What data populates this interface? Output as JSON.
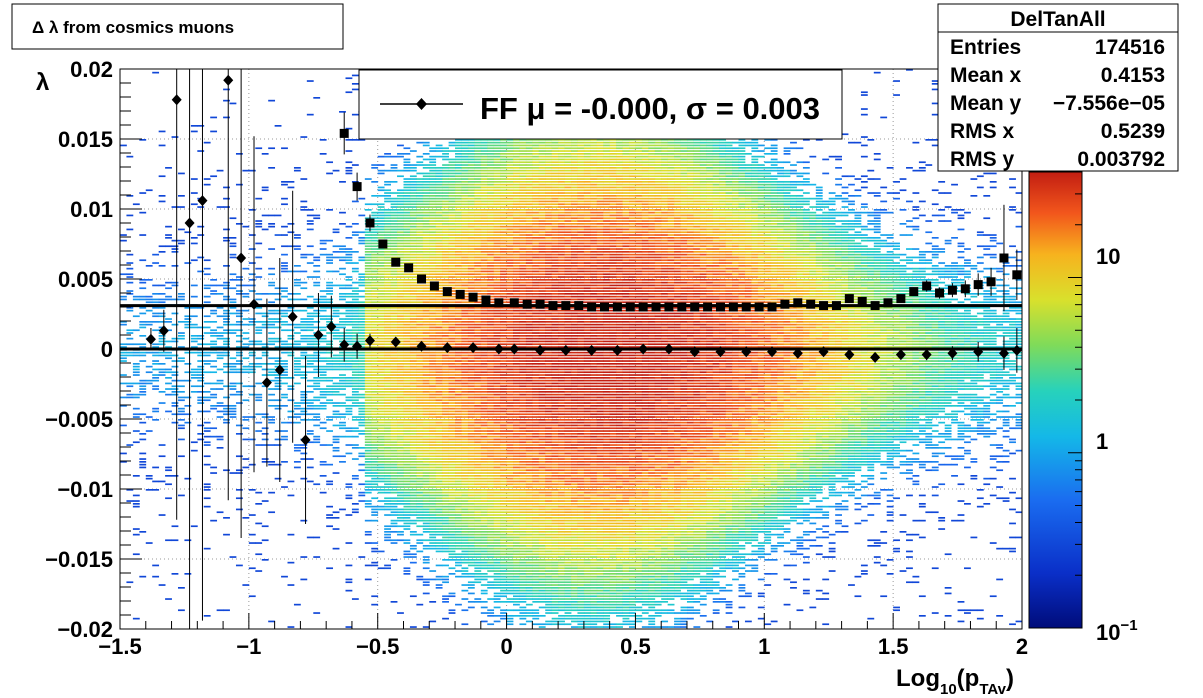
{
  "chart_data": {
    "type": "heatmap",
    "title": "Δ λ from cosmics muons",
    "xlabel": "Log10(pTAv)",
    "xlabel_parts": {
      "base": "Log",
      "sub1": "10",
      "mid": "(p",
      "sub2": "TAv",
      "end": ")"
    },
    "ylabel": "λ",
    "xlim": [
      -1.5,
      2
    ],
    "ylim": [
      -0.02,
      0.02
    ],
    "x_ticks": [
      -1.5,
      -1,
      -0.5,
      0,
      0.5,
      1,
      1.5,
      2
    ],
    "x_tick_labels": [
      "−1.5",
      "−1",
      "−0.5",
      "0",
      "0.5",
      "1",
      "1.5",
      "2"
    ],
    "y_ticks": [
      -0.02,
      -0.015,
      -0.01,
      -0.005,
      0,
      0.005,
      0.01,
      0.015,
      0.02
    ],
    "y_tick_labels": [
      "−0.02",
      "−0.015",
      "−0.01",
      "−0.005",
      "0",
      "0.005",
      "0.01",
      "0.015",
      "0.02"
    ],
    "grid": true,
    "colorbar": {
      "scale": "log",
      "range": [
        0.1,
        40
      ],
      "labels": [
        {
          "value": 0.1,
          "base": "10",
          "exp": "−1"
        },
        {
          "value": 1,
          "text": "1"
        },
        {
          "value": 10,
          "text": "10"
        }
      ]
    },
    "legend": {
      "placement": "top-center",
      "text": "FF μ = -0.000, σ =   0.003"
    },
    "fit_lines": {
      "mean": 0.0,
      "upper": 0.0031
    },
    "stats": {
      "name": "DelTanAll",
      "rows": [
        {
          "label": "Entries",
          "value": "174516"
        },
        {
          "label": "Mean x",
          "value": "0.4153"
        },
        {
          "label": "Mean y",
          "value": "−7.556e−05"
        },
        {
          "label": "RMS x",
          "value": "0.5239"
        },
        {
          "label": "RMS y",
          "value": "0.003792"
        }
      ]
    },
    "series": [
      {
        "marker": "diamond",
        "x": [
          -1.38,
          -1.33,
          -1.28,
          -1.23,
          -1.18,
          -1.08,
          -1.03,
          -0.98,
          -0.93,
          -0.88,
          -0.83,
          -0.78,
          -0.73,
          -0.68,
          -0.63,
          -0.58,
          -0.53,
          -0.43,
          -0.33,
          -0.23,
          -0.13,
          -0.03,
          0.03,
          0.13,
          0.23,
          0.33,
          0.43,
          0.53,
          0.63,
          0.73,
          0.83,
          0.93,
          1.03,
          1.13,
          1.23,
          1.33,
          1.43,
          1.53,
          1.63,
          1.73,
          1.83,
          1.93,
          1.98
        ],
        "y": [
          0.0007,
          0.0013,
          0.0178,
          0.009,
          0.0106,
          0.0192,
          0.0065,
          0.0032,
          -0.0024,
          -0.0015,
          0.0023,
          -0.0065,
          0.001,
          0.0016,
          0.0003,
          0.0002,
          0.0006,
          0.0005,
          0.0002,
          0.0001,
          0.0001,
          0.0,
          0.0,
          -0.0001,
          -0.0001,
          -0.0001,
          -0.0001,
          0.0,
          0.0,
          -0.0002,
          -0.0002,
          -0.0002,
          -0.0002,
          -0.0003,
          -0.0002,
          -0.0004,
          -0.0006,
          -0.0004,
          -0.0004,
          -0.0003,
          -0.0002,
          -0.0003,
          -0.0001
        ],
        "err": [
          0.0008,
          0.0015,
          0.03,
          0.03,
          0.03,
          0.03,
          0.02,
          0.012,
          0.006,
          0.008,
          0.009,
          0.006,
          0.003,
          0.0022,
          0.0012,
          0.0009,
          0.0005,
          0.0003,
          0.0002,
          0.0001,
          0.0001,
          0.0001,
          0.0001,
          0.0001,
          0.0001,
          0.0001,
          0.0001,
          0.0001,
          0.0001,
          0.0001,
          0.0001,
          0.0001,
          0.0001,
          0.0002,
          0.0002,
          0.0002,
          0.0003,
          0.0003,
          0.0004,
          0.0005,
          0.0007,
          0.0012,
          0.0016
        ]
      },
      {
        "marker": "square",
        "x": [
          -0.63,
          -0.58,
          -0.53,
          -0.48,
          -0.43,
          -0.38,
          -0.33,
          -0.28,
          -0.23,
          -0.18,
          -0.13,
          -0.08,
          -0.03,
          0.03,
          0.08,
          0.13,
          0.18,
          0.23,
          0.28,
          0.33,
          0.38,
          0.43,
          0.48,
          0.53,
          0.58,
          0.63,
          0.68,
          0.73,
          0.78,
          0.83,
          0.88,
          0.93,
          0.98,
          1.03,
          1.08,
          1.13,
          1.18,
          1.23,
          1.28,
          1.33,
          1.38,
          1.43,
          1.48,
          1.53,
          1.58,
          1.63,
          1.68,
          1.73,
          1.78,
          1.83,
          1.88,
          1.93,
          1.98
        ],
        "y": [
          0.0154,
          0.0116,
          0.009,
          0.0075,
          0.0062,
          0.0058,
          0.005,
          0.0045,
          0.0041,
          0.0039,
          0.0037,
          0.0035,
          0.0033,
          0.0033,
          0.0032,
          0.0032,
          0.0031,
          0.0031,
          0.0031,
          0.003,
          0.003,
          0.003,
          0.003,
          0.003,
          0.003,
          0.003,
          0.003,
          0.003,
          0.003,
          0.003,
          0.003,
          0.003,
          0.003,
          0.003,
          0.0032,
          0.0033,
          0.0032,
          0.0031,
          0.0031,
          0.0036,
          0.0034,
          0.0031,
          0.0033,
          0.0036,
          0.0041,
          0.0045,
          0.004,
          0.0042,
          0.0043,
          0.0046,
          0.0048,
          0.0065,
          0.0053
        ],
        "err": [
          0.0015,
          0.001,
          0.0006,
          0.0003,
          0.0002,
          0.0002,
          0.0001,
          0.0001,
          0.0001,
          0.0001,
          0.0001,
          0.0001,
          0.0001,
          0.0001,
          0.0001,
          0.0001,
          0.0001,
          0.0001,
          0.0001,
          0.0001,
          0.0001,
          0.0001,
          0.0001,
          0.0001,
          0.0001,
          0.0001,
          0.0001,
          0.0001,
          0.0001,
          0.0001,
          0.0001,
          0.0001,
          0.0001,
          0.0001,
          0.0001,
          0.0001,
          0.0001,
          0.0002,
          0.0002,
          0.0002,
          0.0002,
          0.0002,
          0.0002,
          0.0003,
          0.0003,
          0.0004,
          0.0004,
          0.0005,
          0.0006,
          0.0008,
          0.001,
          0.0038,
          0.0018
        ]
      }
    ]
  }
}
